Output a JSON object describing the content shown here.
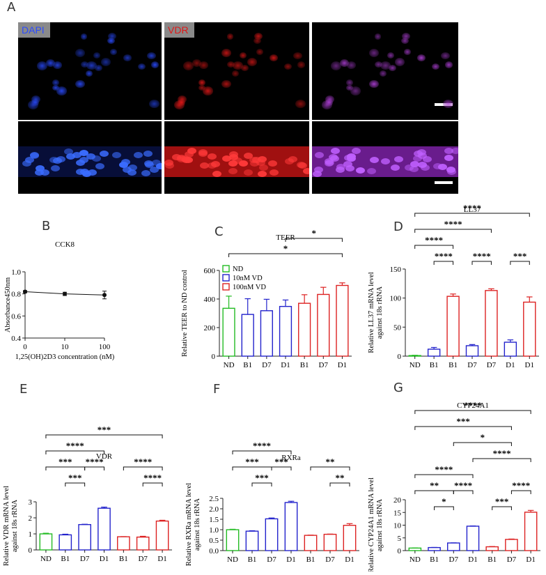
{
  "panel_letters": {
    "a": "A",
    "b": "B",
    "c": "C",
    "d": "D",
    "e": "E",
    "f": "F",
    "g": "G"
  },
  "microscopy": {
    "labels": {
      "dapi": "DAPI",
      "vdr": "VDR"
    },
    "colors": {
      "dapi": "#2a4bff",
      "vdr": "#e01818",
      "merge": "#b040d8"
    }
  },
  "chart_data": [
    {
      "id": "B",
      "type": "line",
      "title": "CCK8",
      "xlabel": "1,25(OH)2D3 concentration (nM)",
      "ylabel": "Absorbance450nm",
      "x": [
        0,
        10,
        100
      ],
      "xticks": [
        "0",
        "10",
        "100"
      ],
      "y": [
        0.82,
        0.8,
        0.79
      ],
      "err": [
        0.01,
        0.015,
        0.035
      ],
      "ylim": [
        0.4,
        1.0
      ],
      "yticks": [
        "0.4",
        "0.6",
        "0.8",
        "1.0"
      ]
    },
    {
      "id": "C",
      "type": "bar",
      "title": "TEER",
      "ylabel": "Relative TEER to ND control",
      "categories": [
        "ND",
        "B1",
        "D7",
        "D1",
        "B1",
        "D7",
        "D1"
      ],
      "colors": [
        "#22bb22",
        "#2222cc",
        "#2222cc",
        "#2222cc",
        "#dd2222",
        "#dd2222",
        "#dd2222"
      ],
      "values": [
        335,
        292,
        318,
        348,
        370,
        432,
        495
      ],
      "err": [
        85,
        110,
        80,
        45,
        60,
        50,
        18
      ],
      "ylim": [
        0,
        600
      ],
      "yticks": [
        "0",
        "200",
        "400",
        "600"
      ],
      "legend": [
        {
          "label": "ND",
          "color": "#22bb22"
        },
        {
          "label": "10nM VD",
          "color": "#2222cc"
        },
        {
          "label": "100nM VD",
          "color": "#dd2222"
        }
      ],
      "sig": [
        {
          "from": 0,
          "to": 6,
          "text": "*",
          "level": 0
        },
        {
          "from": 3,
          "to": 6,
          "text": "*",
          "level": 1
        }
      ]
    },
    {
      "id": "D",
      "type": "bar",
      "title": "LL37",
      "ylabel": "Relative LL37 mRNA level against 18s rRNA",
      "categories": [
        "ND",
        "B1",
        "B1",
        "D7",
        "D7",
        "D1",
        "D1"
      ],
      "colors": [
        "#22bb22",
        "#2222cc",
        "#dd2222",
        "#2222cc",
        "#dd2222",
        "#2222cc",
        "#dd2222"
      ],
      "values": [
        1,
        12,
        103,
        18,
        113,
        24,
        93
      ],
      "err": [
        0.5,
        3,
        4,
        2,
        3,
        4,
        9
      ],
      "ylim": [
        0,
        150
      ],
      "yticks": [
        "0",
        "50",
        "100",
        "150"
      ],
      "sig": [
        {
          "from": 1,
          "to": 2,
          "text": "****",
          "level": 0
        },
        {
          "from": 3,
          "to": 4,
          "text": "****",
          "level": 0
        },
        {
          "from": 5,
          "to": 6,
          "text": "***",
          "level": 0
        },
        {
          "from": 0,
          "to": 2,
          "text": "****",
          "level": 1
        },
        {
          "from": 0,
          "to": 4,
          "text": "****",
          "level": 2
        },
        {
          "from": 0,
          "to": 6,
          "text": "****",
          "level": 3
        }
      ]
    },
    {
      "id": "E",
      "type": "bar",
      "title": "VDR",
      "ylabel": "Relative VDR mRNA level against 18s rRNA",
      "categories": [
        "ND",
        "B1",
        "D7",
        "D1",
        "B1",
        "D7",
        "D1"
      ],
      "colors": [
        "#22bb22",
        "#2222cc",
        "#2222cc",
        "#2222cc",
        "#dd2222",
        "#dd2222",
        "#dd2222"
      ],
      "values": [
        1.0,
        0.94,
        1.58,
        2.6,
        0.82,
        0.8,
        1.8
      ],
      "err": [
        0.04,
        0.04,
        0.02,
        0.07,
        0.01,
        0.05,
        0.05
      ],
      "ylim": [
        0,
        3
      ],
      "yticks": [
        "0",
        "1",
        "2",
        "3"
      ],
      "sig": [
        {
          "from": 1,
          "to": 2,
          "text": "***",
          "level": 0
        },
        {
          "from": 5,
          "to": 6,
          "text": "****",
          "level": 0
        },
        {
          "from": 0,
          "to": 2,
          "text": "***",
          "level": 1
        },
        {
          "from": 2,
          "to": 3,
          "text": "****",
          "level": 1
        },
        {
          "from": 4,
          "to": 6,
          "text": "****",
          "level": 1
        },
        {
          "from": 0,
          "to": 3,
          "text": "****",
          "level": 2
        },
        {
          "from": 0,
          "to": 6,
          "text": "***",
          "level": 3
        }
      ]
    },
    {
      "id": "F",
      "type": "bar",
      "title": "RXRa",
      "ylabel": "Relative RXRa mRNA level against 18s rRNA",
      "categories": [
        "ND",
        "B1",
        "D7",
        "D1",
        "B1",
        "D7",
        "D1"
      ],
      "colors": [
        "#22bb22",
        "#2222cc",
        "#2222cc",
        "#2222cc",
        "#dd2222",
        "#dd2222",
        "#dd2222"
      ],
      "values": [
        1.0,
        0.93,
        1.52,
        2.3,
        0.73,
        0.78,
        1.21
      ],
      "err": [
        0.02,
        0.02,
        0.04,
        0.06,
        0.01,
        0.01,
        0.08
      ],
      "ylim": [
        0,
        2.5
      ],
      "yticks": [
        "0.0",
        "0.5",
        "1.0",
        "1.5",
        "2.0",
        "2.5"
      ],
      "sig": [
        {
          "from": 1,
          "to": 2,
          "text": "***",
          "level": 0
        },
        {
          "from": 5,
          "to": 6,
          "text": "**",
          "level": 0
        },
        {
          "from": 0,
          "to": 2,
          "text": "***",
          "level": 1
        },
        {
          "from": 2,
          "to": 3,
          "text": "***",
          "level": 1
        },
        {
          "from": 4,
          "to": 6,
          "text": "**",
          "level": 1
        },
        {
          "from": 0,
          "to": 3,
          "text": "****",
          "level": 2
        }
      ]
    },
    {
      "id": "G",
      "type": "bar",
      "title": "CYP24A1",
      "ylabel": "Relative CYP24A1 mRNA level against 18s rRNA",
      "categories": [
        "ND",
        "B1",
        "D7",
        "D1",
        "B1",
        "D7",
        "D1"
      ],
      "colors": [
        "#22bb22",
        "#2222cc",
        "#2222cc",
        "#2222cc",
        "#dd2222",
        "#dd2222",
        "#dd2222"
      ],
      "values": [
        1.0,
        1.2,
        3.0,
        9.6,
        1.5,
        4.4,
        15.1
      ],
      "err": [
        0.05,
        0.05,
        0.05,
        0.1,
        0.1,
        0.15,
        0.7
      ],
      "ylim": [
        0,
        20
      ],
      "yticks": [
        "0",
        "5",
        "10",
        "15",
        "20"
      ],
      "sig": [
        {
          "from": 1,
          "to": 2,
          "text": "*",
          "level": 0
        },
        {
          "from": 4,
          "to": 5,
          "text": "***",
          "level": 0
        },
        {
          "from": 0,
          "to": 2,
          "text": "**",
          "level": 1
        },
        {
          "from": 2,
          "to": 3,
          "text": "****",
          "level": 1
        },
        {
          "from": 5,
          "to": 6,
          "text": "****",
          "level": 1
        },
        {
          "from": 0,
          "to": 3,
          "text": "****",
          "level": 2
        },
        {
          "from": 3,
          "to": 6,
          "text": "****",
          "level": 3
        },
        {
          "from": 2,
          "to": 5,
          "text": "*",
          "level": 4
        },
        {
          "from": 0,
          "to": 5,
          "text": "***",
          "level": 5
        },
        {
          "from": 0,
          "to": 6,
          "text": "****",
          "level": 6
        }
      ]
    }
  ]
}
